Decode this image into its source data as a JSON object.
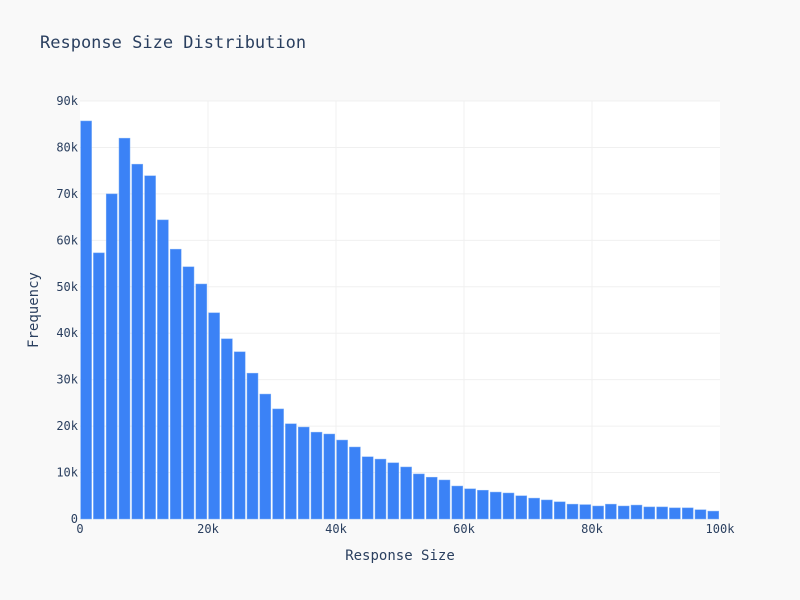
{
  "chart_data": {
    "type": "bar",
    "title": "Response Size Distribution",
    "xlabel": "Response Size",
    "ylabel": "Frequency",
    "xlim": [
      0,
      100000
    ],
    "ylim": [
      0,
      90000
    ],
    "bin_width": 2000,
    "grid": true,
    "bar_color": "#3b82f6",
    "x_ticks": [
      {
        "value": 0,
        "label": "0"
      },
      {
        "value": 20000,
        "label": "20k"
      },
      {
        "value": 40000,
        "label": "40k"
      },
      {
        "value": 60000,
        "label": "60k"
      },
      {
        "value": 80000,
        "label": "80k"
      },
      {
        "value": 100000,
        "label": "100k"
      }
    ],
    "y_ticks": [
      {
        "value": 0,
        "label": "0"
      },
      {
        "value": 10000,
        "label": "10k"
      },
      {
        "value": 20000,
        "label": "20k"
      },
      {
        "value": 30000,
        "label": "30k"
      },
      {
        "value": 40000,
        "label": "40k"
      },
      {
        "value": 50000,
        "label": "50k"
      },
      {
        "value": 60000,
        "label": "60k"
      },
      {
        "value": 70000,
        "label": "70k"
      },
      {
        "value": 80000,
        "label": "80k"
      },
      {
        "value": 90000,
        "label": "90k"
      }
    ],
    "values": [
      85700,
      57300,
      70000,
      82000,
      76400,
      73900,
      64400,
      58100,
      54300,
      50600,
      44400,
      38800,
      36000,
      31400,
      26900,
      23700,
      20500,
      19800,
      18700,
      18300,
      17000,
      15500,
      13400,
      12900,
      12100,
      11200,
      9700,
      9000,
      8400,
      7100,
      6500,
      6200,
      5800,
      5600,
      5000,
      4500,
      4100,
      3700,
      3200,
      3100,
      2800,
      3200,
      2800,
      3000,
      2600,
      2600,
      2400,
      2400,
      2000,
      1700
    ]
  }
}
